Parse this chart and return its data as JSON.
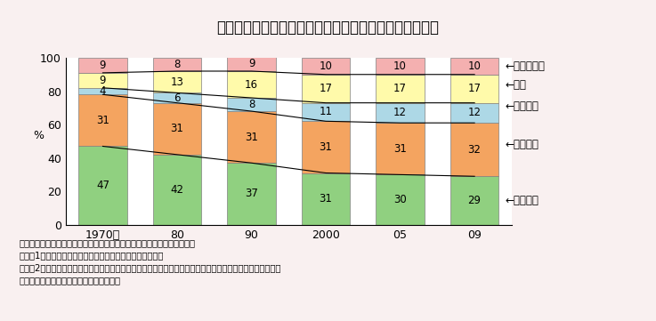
{
  "title": "図２－４　消費者世帯の種類別食料消費支出割合の推移",
  "years": [
    "1970年",
    "80",
    "90",
    "2000",
    "05",
    "09"
  ],
  "categories": [
    "生鮮食品",
    "加工食品",
    "調理食品",
    "外食",
    "飲料・酒類"
  ],
  "values": {
    "生鮮食品": [
      47,
      42,
      37,
      31,
      30,
      29
    ],
    "加工食品": [
      31,
      31,
      31,
      31,
      31,
      32
    ],
    "調理食品": [
      4,
      6,
      8,
      11,
      12,
      12
    ],
    "外食": [
      9,
      13,
      16,
      17,
      17,
      17
    ],
    "飲料・酒類": [
      9,
      8,
      9,
      10,
      10,
      10
    ]
  },
  "colors": {
    "生鮮食品": "#90d080",
    "加工食品": "#f4a460",
    "調理食品": "#add8e6",
    "外食": "#fffaaa",
    "飲料・酒類": "#f4b0b0"
  },
  "note_line1": "資料：総務省「家計調査」、「消費者物価指数」を基に農林水産省で作成",
  "note_line2": "　注：1）二人以上の世帯（農林漁家世帯を除く）、名目値",
  "note_line3": "　　　2）生鮮食品は米、生鮮魚介、生鮮肉、卵、生鮮野菜、生鮮果物。加工食品は生鮮食品、調理食品、外",
  "note_line4": "　　　　食、飲料・酒類を除く食料すべて",
  "ylabel": "%",
  "ylim": [
    0,
    100
  ],
  "background_color": "#f9f0f0",
  "chart_background": "#ffffff"
}
